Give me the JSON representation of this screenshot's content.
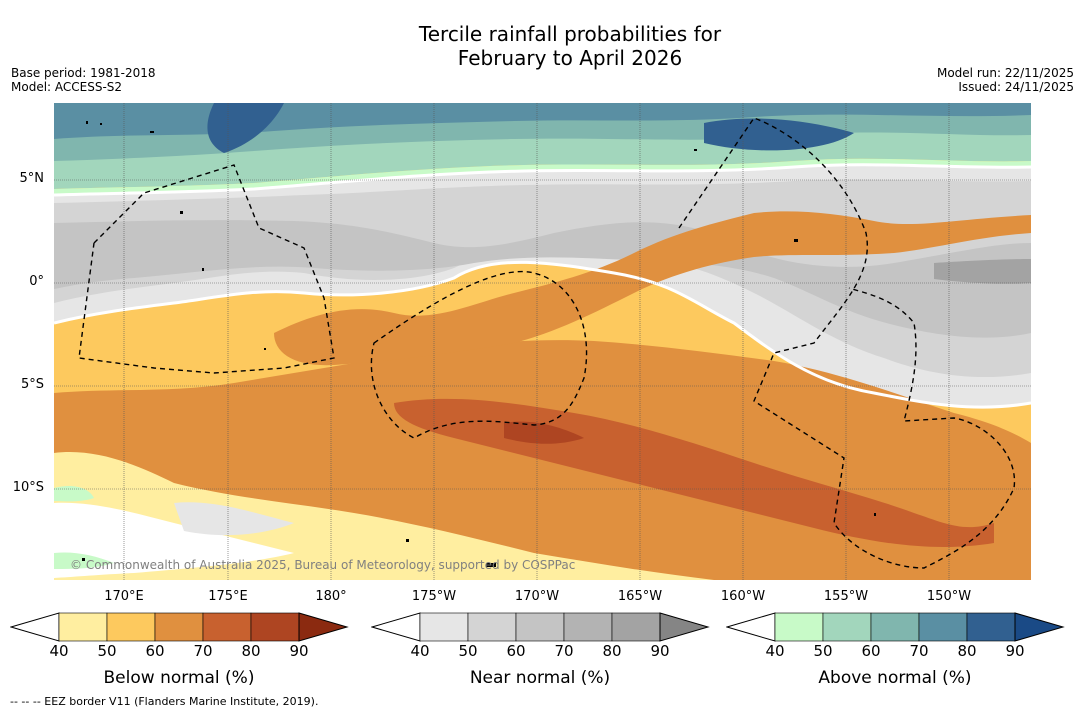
{
  "title": {
    "line1": "Tercile rainfall probabilities for",
    "line2": "February to April 2026"
  },
  "meta": {
    "base_period": "Base period: 1981-2018",
    "model": "Model: ACCESS-S2",
    "model_run": "Model run: 22/11/2025",
    "issued": "Issued: 24/11/2025"
  },
  "map": {
    "lat_labels": [
      "5°N",
      "0°",
      "5°S",
      "10°S"
    ],
    "lon_labels": [
      "170°E",
      "175°E",
      "180°",
      "175°W",
      "170°W",
      "165°W",
      "160°W",
      "155°W",
      "150°W"
    ],
    "copyright": "© Commonwealth of Australia 2025, Bureau of Meteorology, supported by COSPPac"
  },
  "colorbars": [
    {
      "title": "Below normal (%)",
      "ticks": [
        "40",
        "50",
        "60",
        "70",
        "80",
        "90"
      ],
      "colors": [
        "#ffeea0",
        "#fdc95e",
        "#e0903f",
        "#c8612f",
        "#ae4522",
        "#8b2a10"
      ]
    },
    {
      "title": "Near normal (%)",
      "ticks": [
        "40",
        "50",
        "60",
        "70",
        "80",
        "90"
      ],
      "colors": [
        "#e6e6e6",
        "#d4d4d4",
        "#c4c4c4",
        "#b3b3b3",
        "#a3a3a3",
        "#858585"
      ]
    },
    {
      "title": "Above normal (%)",
      "ticks": [
        "40",
        "50",
        "60",
        "70",
        "80",
        "90"
      ],
      "colors": [
        "#c8fac8",
        "#a2d6bc",
        "#80b6ae",
        "#5a8fa3",
        "#316090",
        "#1a4a86"
      ]
    }
  ],
  "footer": "--  --  -- EEZ border V11 (Flanders Marine Institute, 2019)."
}
